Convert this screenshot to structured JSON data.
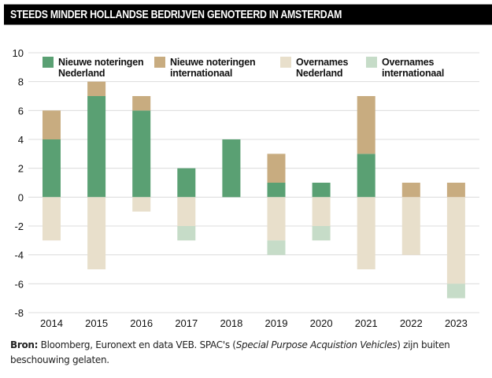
{
  "header": {
    "title": "STEEDS MINDER HOLLANDSE BEDRIJVEN GENOTEERD IN AMSTERDAM"
  },
  "chart_data": {
    "type": "bar",
    "stacked": true,
    "title": "STEEDS MINDER HOLLANDSE BEDRIJVEN GENOTEERD IN AMSTERDAM",
    "xlabel": "",
    "ylabel": "",
    "ylim": [
      -8,
      10
    ],
    "yticks": [
      10,
      8,
      6,
      4,
      2,
      0,
      -2,
      -4,
      -6,
      -8
    ],
    "grid": true,
    "legend_position": "top",
    "categories": [
      "2014",
      "2015",
      "2016",
      "2017",
      "2018",
      "2019",
      "2020",
      "2021",
      "2022",
      "2023"
    ],
    "series": [
      {
        "name": "Nieuwe noteringen Nederland",
        "legend_lines": [
          "Nieuwe noteringen",
          "Nederland"
        ],
        "color": "#5aa073",
        "values": [
          4,
          7,
          6,
          2,
          4,
          1,
          1,
          3,
          0,
          0
        ]
      },
      {
        "name": "Nieuwe noteringen internationaal",
        "legend_lines": [
          "Nieuwe noteringen",
          "internationaal"
        ],
        "color": "#c8ac80",
        "values": [
          2,
          1,
          1,
          0,
          0,
          2,
          0,
          4,
          1,
          1
        ]
      },
      {
        "name": "Overnames Nederland",
        "legend_lines": [
          "Overnames",
          "Nederland"
        ],
        "color": "#e8dfcb",
        "values": [
          -3,
          -5,
          -1,
          -2,
          0,
          -3,
          -2,
          -5,
          -4,
          -6
        ]
      },
      {
        "name": "Overnames internationaal",
        "legend_lines": [
          "Overnames",
          "internationaal"
        ],
        "color": "#c6dcc8",
        "values": [
          0,
          0,
          0,
          -1,
          0,
          -1,
          -1,
          0,
          0,
          -1
        ]
      }
    ]
  },
  "source": {
    "label": "Bron:",
    "text_before_italic": " Bloomberg, Euronext en data VEB. SPAC's (",
    "italic": "Special Purpose Acquistion Vehicles",
    "text_after_italic": ") zijn buiten beschouwing gelaten."
  }
}
